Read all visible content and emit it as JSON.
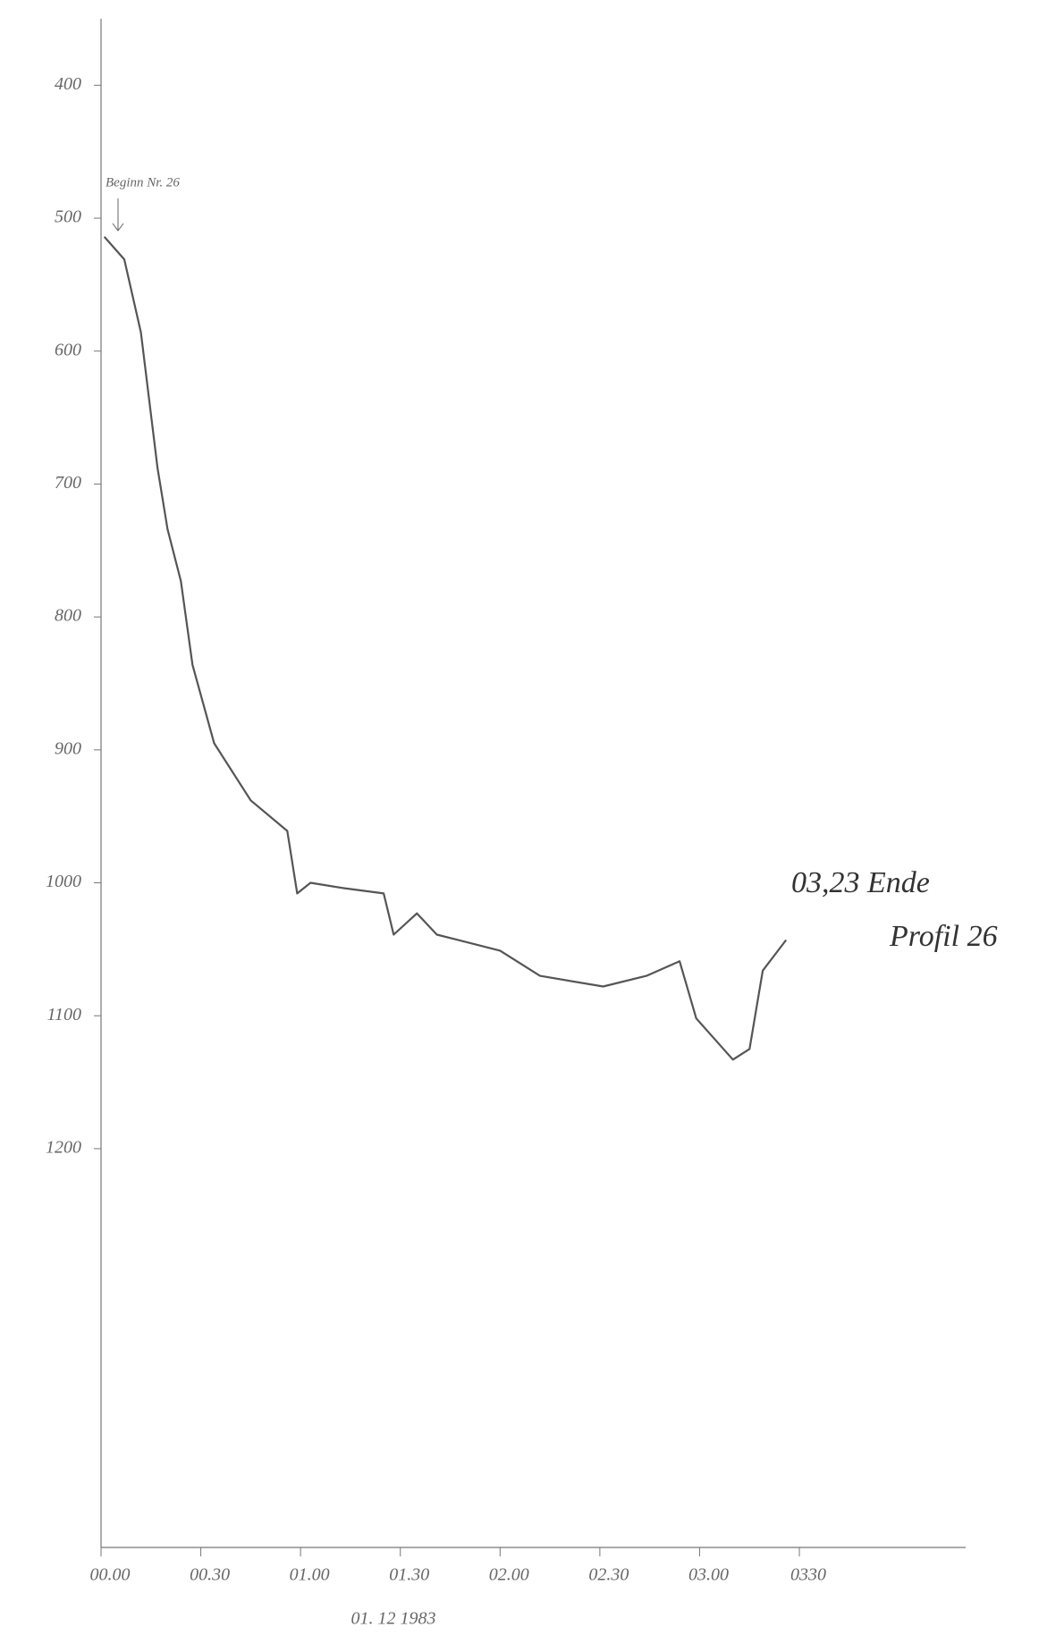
{
  "chart_data": {
    "type": "line",
    "annotations": [
      "Beginn Nr. 26",
      "03,23 Ende",
      "Profil 26",
      "01. 12 1983"
    ],
    "x": [
      1,
      7,
      12,
      17,
      20,
      24,
      27.5,
      34,
      45,
      56,
      59,
      63,
      73,
      85,
      88,
      95,
      101,
      120,
      132,
      151,
      164,
      174,
      179,
      190,
      195,
      199,
      206
    ],
    "values": [
      514,
      531,
      586,
      688,
      734,
      773,
      836,
      895,
      938,
      961,
      1008,
      1000,
      1004,
      1008,
      1039,
      1023,
      1039,
      1051,
      1070,
      1078,
      1070,
      1059,
      1102,
      1133,
      1125,
      1066,
      1043
    ],
    "color": "#555555",
    "xlim": [
      0,
      260
    ],
    "ylim": [
      350,
      1500
    ],
    "y_inverted": true,
    "xticks": [
      {
        "value": 0,
        "label": "00.00"
      },
      {
        "value": 30,
        "label": "00.30"
      },
      {
        "value": 60,
        "label": "01.00"
      },
      {
        "value": 90,
        "label": "01.30"
      },
      {
        "value": 120,
        "label": "02.00"
      },
      {
        "value": 150,
        "label": "02.30"
      },
      {
        "value": 180,
        "label": "03.00"
      },
      {
        "value": 210,
        "label": "0330"
      }
    ],
    "yticks": [
      400,
      500,
      600,
      700,
      800,
      900,
      1000,
      1100,
      1200
    ]
  }
}
